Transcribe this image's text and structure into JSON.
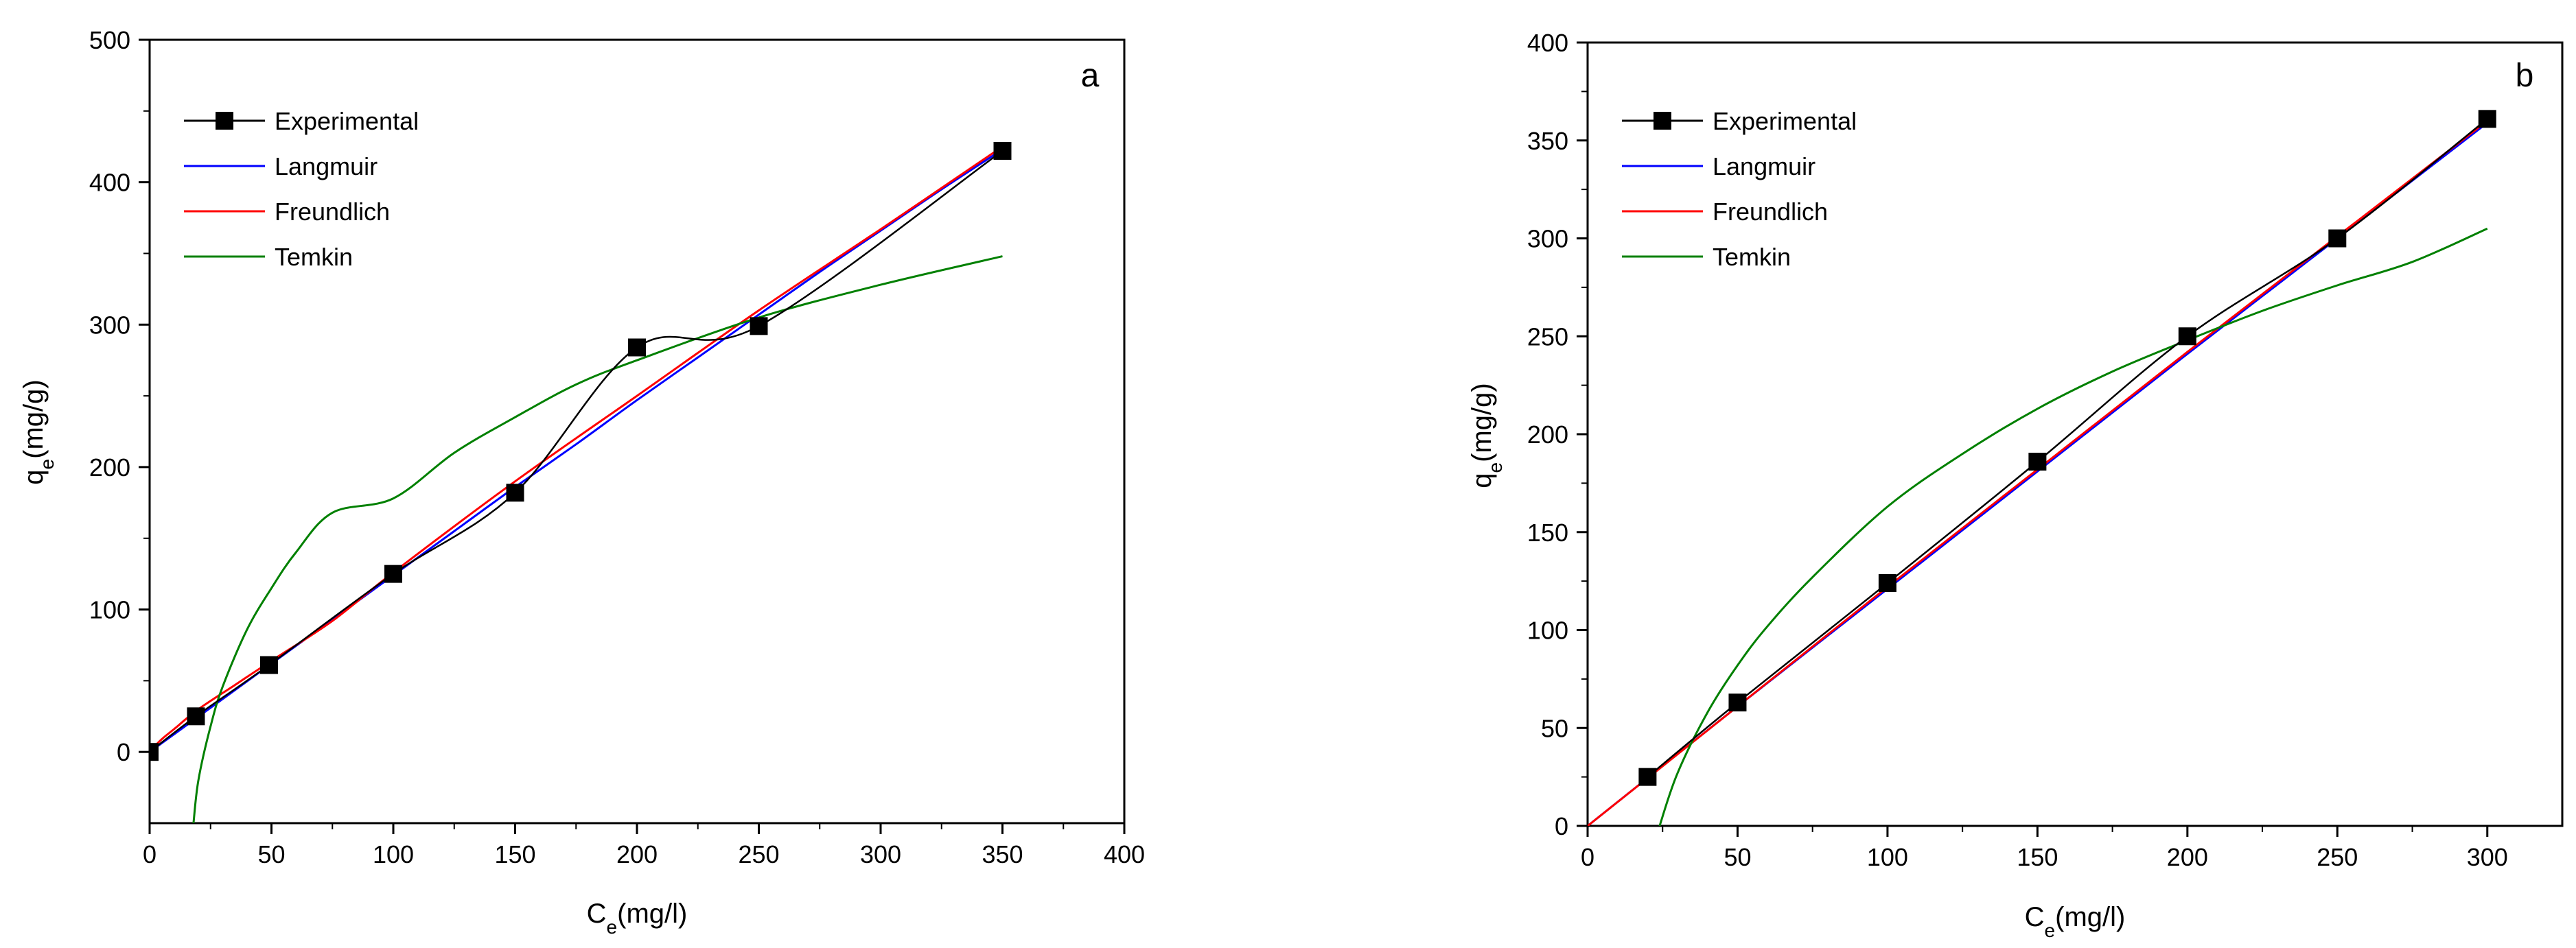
{
  "chart_data": [
    {
      "id": "a",
      "type": "scatter",
      "panel_label": "a",
      "xlabel": "Ce(mg/l)",
      "xlabel_main": "C",
      "xlabel_sub": "e",
      "xlabel_rest": "(mg/l)",
      "ylabel": "qe(mg/g)",
      "ylabel_main": "q",
      "ylabel_sub": "e",
      "ylabel_rest": "(mg/g)",
      "xlim": [
        0,
        400
      ],
      "ylim": [
        -50,
        500
      ],
      "xticks": [
        0,
        50,
        100,
        150,
        200,
        250,
        300,
        350,
        400
      ],
      "yticks": [
        0,
        100,
        200,
        300,
        400,
        500
      ],
      "grid": false,
      "legend_position": "top-left",
      "legend": [
        "Experimental",
        "Langmuir",
        "Freundlich",
        "Temkin"
      ],
      "series": [
        {
          "name": "Experimental",
          "color": "#000000",
          "marker": "square",
          "line": "smooth",
          "x": [
            0,
            19,
            49,
            100,
            150,
            200,
            250,
            350
          ],
          "y": [
            0,
            25,
            61,
            125,
            182,
            284,
            299,
            422
          ]
        },
        {
          "name": "Langmuir",
          "color": "#0000ff",
          "marker": "none",
          "x": [
            0,
            25,
            50,
            75,
            100,
            125,
            150,
            175,
            200,
            225,
            250,
            275,
            300,
            325,
            350
          ],
          "y": [
            0,
            31,
            62,
            93,
            124,
            155,
            186,
            216,
            247,
            277,
            307,
            337,
            366,
            395,
            423
          ]
        },
        {
          "name": "Freundlich",
          "color": "#ff0000",
          "marker": "none",
          "x": [
            0,
            1,
            5,
            10,
            20,
            35,
            50,
            75,
            100,
            150,
            200,
            250,
            300,
            350
          ],
          "y": [
            0,
            2,
            9,
            16,
            30,
            47,
            64,
            92,
            126,
            190,
            250,
            310,
            367,
            425
          ]
        },
        {
          "name": "Temkin",
          "color": "#008000",
          "marker": "none",
          "x": [
            18,
            20,
            25,
            30,
            40,
            50,
            60,
            75,
            100,
            125,
            150,
            175,
            200,
            250,
            300,
            350
          ],
          "y": [
            -50,
            -20,
            18,
            46,
            86,
            115,
            140,
            168,
            178,
            210,
            235,
            258,
            275,
            305,
            328,
            348
          ]
        }
      ]
    },
    {
      "id": "b",
      "type": "scatter",
      "panel_label": "b",
      "xlabel": "Ce(mg/l)",
      "xlabel_main": "C",
      "xlabel_sub": "e",
      "xlabel_rest": "(mg/l)",
      "ylabel": "qe(mg/g)",
      "ylabel_main": "q",
      "ylabel_sub": "e",
      "ylabel_rest": "(mg/g)",
      "xlim": [
        0,
        325
      ],
      "ylim": [
        0,
        400
      ],
      "xticks": [
        0,
        50,
        100,
        150,
        200,
        250,
        300
      ],
      "yticks": [
        0,
        50,
        100,
        150,
        200,
        250,
        300,
        350,
        400
      ],
      "grid": false,
      "legend_position": "top-left",
      "legend": [
        "Experimental",
        "Langmuir",
        "Freundlich",
        "Temkin"
      ],
      "series": [
        {
          "name": "Experimental",
          "color": "#000000",
          "marker": "square",
          "line": "smooth",
          "x": [
            20,
            50,
            100,
            150,
            200,
            250,
            300
          ],
          "y": [
            25,
            63,
            124,
            186,
            250,
            300,
            361
          ]
        },
        {
          "name": "Langmuir",
          "color": "#0000ff",
          "marker": "none",
          "x": [
            0,
            50,
            100,
            150,
            200,
            250,
            300
          ],
          "y": [
            0,
            61,
            121,
            181,
            241,
            300,
            359
          ]
        },
        {
          "name": "Freundlich",
          "color": "#ff0000",
          "marker": "none",
          "x": [
            0,
            50,
            100,
            150,
            200,
            250,
            300
          ],
          "y": [
            0,
            61,
            122,
            182,
            242,
            301,
            360
          ]
        },
        {
          "name": "Temkin",
          "color": "#008000",
          "marker": "none",
          "x": [
            24,
            30,
            40,
            50,
            60,
            75,
            100,
            125,
            150,
            175,
            200,
            225,
            250,
            275,
            300
          ],
          "y": [
            0,
            27,
            58,
            82,
            102,
            127,
            163,
            190,
            213,
            232,
            248,
            263,
            276,
            288,
            305
          ]
        }
      ]
    }
  ]
}
